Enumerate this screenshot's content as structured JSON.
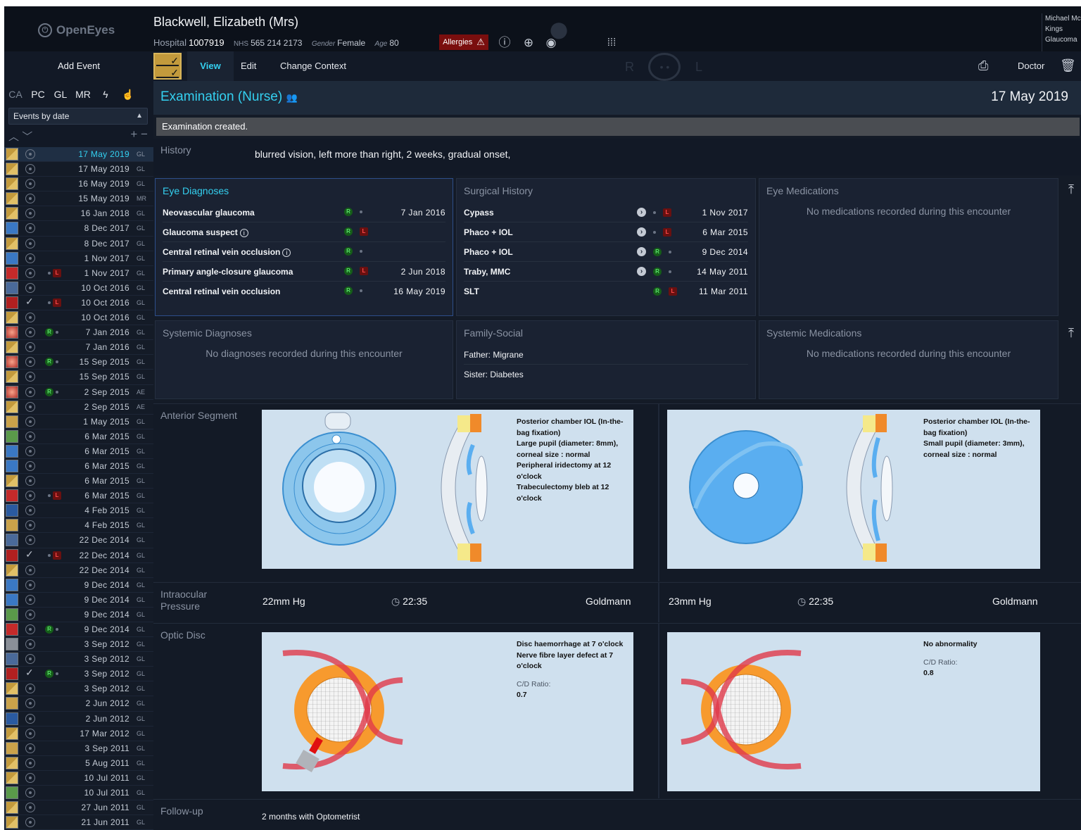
{
  "app": {
    "logo": "OpenEyes"
  },
  "patient": {
    "name": "Blackwell, Elizabeth (Mrs)",
    "hospital_label": "Hospital",
    "hospital_no": "1007919",
    "nhs_label": "NHS",
    "nhs_no": "565 214 2173",
    "gender_label": "Gender",
    "gender": "Female",
    "age_label": "Age",
    "age": "80",
    "allergies": "Allergies"
  },
  "user": {
    "line1": "Michael Mc",
    "line2": "Kings",
    "line3": "Glaucoma"
  },
  "toolbar": {
    "view": "View",
    "edit": "Edit",
    "change_context": "Change Context",
    "doctor": "Doctor",
    "ghost_r": "R",
    "ghost_l": "L"
  },
  "sidebar": {
    "add_event": "Add Event",
    "subspecialties": [
      "CA",
      "PC",
      "GL",
      "MR"
    ],
    "sort_select": "Events by date",
    "events": [
      {
        "date": "17 May 2019",
        "spec": "GL",
        "icon": "examination",
        "lat": ""
      },
      {
        "date": "17 May 2019",
        "spec": "GL",
        "icon": "examination",
        "lat": ""
      },
      {
        "date": "16 May 2019",
        "spec": "GL",
        "icon": "examination",
        "lat": ""
      },
      {
        "date": "15 May 2019",
        "spec": "MR",
        "icon": "examination",
        "lat": ""
      },
      {
        "date": "16 Jan 2018",
        "spec": "GL",
        "icon": "examination",
        "lat": ""
      },
      {
        "date": "8 Dec 2017",
        "spec": "GL",
        "icon": "referral",
        "lat": ""
      },
      {
        "date": "8 Dec 2017",
        "spec": "GL",
        "icon": "examination",
        "lat": ""
      },
      {
        "date": "1 Nov 2017",
        "spec": "GL",
        "icon": "referral",
        "lat": ""
      },
      {
        "date": "1 Nov 2017",
        "spec": "GL",
        "icon": "operation-note",
        "lat": "L"
      },
      {
        "date": "10 Oct 2016",
        "spec": "GL",
        "icon": "biometry",
        "lat": ""
      },
      {
        "date": "10 Oct 2016",
        "spec": "GL",
        "icon": "consent",
        "lat": "L",
        "check": true
      },
      {
        "date": "10 Oct 2016",
        "spec": "GL",
        "icon": "examination",
        "lat": ""
      },
      {
        "date": "7 Jan 2016",
        "spec": "GL",
        "icon": "laser",
        "lat": "R"
      },
      {
        "date": "7 Jan 2016",
        "spec": "GL",
        "icon": "examination",
        "lat": ""
      },
      {
        "date": "15 Sep 2015",
        "spec": "GL",
        "icon": "laser",
        "lat": "R"
      },
      {
        "date": "15 Sep 2015",
        "spec": "GL",
        "icon": "examination",
        "lat": ""
      },
      {
        "date": "2 Sep 2015",
        "spec": "AE",
        "icon": "laser",
        "lat": "R"
      },
      {
        "date": "2 Sep 2015",
        "spec": "AE",
        "icon": "examination",
        "lat": ""
      },
      {
        "date": "1 May 2015",
        "spec": "GL",
        "icon": "visual-fields",
        "lat": ""
      },
      {
        "date": "6 Mar 2015",
        "spec": "GL",
        "icon": "prescription",
        "lat": ""
      },
      {
        "date": "6 Mar 2015",
        "spec": "GL",
        "icon": "referral",
        "lat": ""
      },
      {
        "date": "6 Mar 2015",
        "spec": "GL",
        "icon": "referral",
        "lat": ""
      },
      {
        "date": "6 Mar 2015",
        "spec": "GL",
        "icon": "examination",
        "lat": ""
      },
      {
        "date": "6 Mar 2015",
        "spec": "GL",
        "icon": "operation-note",
        "lat": "L"
      },
      {
        "date": "4 Feb 2015",
        "spec": "GL",
        "icon": "correspondence",
        "lat": ""
      },
      {
        "date": "4 Feb 2015",
        "spec": "GL",
        "icon": "visual-fields",
        "lat": ""
      },
      {
        "date": "22 Dec 2014",
        "spec": "GL",
        "icon": "biometry",
        "lat": ""
      },
      {
        "date": "22 Dec 2014",
        "spec": "GL",
        "icon": "consent",
        "lat": "L",
        "check": true
      },
      {
        "date": "22 Dec 2014",
        "spec": "GL",
        "icon": "examination",
        "lat": ""
      },
      {
        "date": "9 Dec 2014",
        "spec": "GL",
        "icon": "referral",
        "lat": ""
      },
      {
        "date": "9 Dec 2014",
        "spec": "GL",
        "icon": "referral",
        "lat": ""
      },
      {
        "date": "9 Dec 2014",
        "spec": "GL",
        "icon": "prescription",
        "lat": ""
      },
      {
        "date": "9 Dec 2014",
        "spec": "GL",
        "icon": "operation-note",
        "lat": "R"
      },
      {
        "date": "3 Sep 2012",
        "spec": "GL",
        "icon": "orthoptics",
        "lat": ""
      },
      {
        "date": "3 Sep 2012",
        "spec": "GL",
        "icon": "biometry",
        "lat": ""
      },
      {
        "date": "3 Sep 2012",
        "spec": "GL",
        "icon": "consent",
        "lat": "R",
        "check": true
      },
      {
        "date": "3 Sep 2012",
        "spec": "GL",
        "icon": "examination",
        "lat": ""
      },
      {
        "date": "2 Jun 2012",
        "spec": "GL",
        "icon": "visual-fields",
        "lat": ""
      },
      {
        "date": "2 Jun 2012",
        "spec": "GL",
        "icon": "correspondence",
        "lat": ""
      },
      {
        "date": "17 Mar 2012",
        "spec": "GL",
        "icon": "examination",
        "lat": ""
      },
      {
        "date": "3 Sep 2011",
        "spec": "GL",
        "icon": "visual-fields",
        "lat": ""
      },
      {
        "date": "5 Aug 2011",
        "spec": "GL",
        "icon": "examination",
        "lat": ""
      },
      {
        "date": "10 Jul 2011",
        "spec": "GL",
        "icon": "examination",
        "lat": ""
      },
      {
        "date": "10 Jul 2011",
        "spec": "GL",
        "icon": "prescription",
        "lat": ""
      },
      {
        "date": "27 Jun 2011",
        "spec": "GL",
        "icon": "examination",
        "lat": ""
      },
      {
        "date": "21 Jun 2011",
        "spec": "GL",
        "icon": "examination",
        "lat": ""
      }
    ]
  },
  "event": {
    "title": "Examination (Nurse)",
    "date": "17 May 2019",
    "flash": "Examination created."
  },
  "history": {
    "label": "History",
    "text": "blurred vision, left more than right, 2 weeks, gradual onset,"
  },
  "eye_diagnoses": {
    "title": "Eye Diagnoses",
    "rows": [
      {
        "name": "Neovascular glaucoma",
        "R": true,
        "L": false,
        "date": "7 Jan 2016",
        "info": false
      },
      {
        "name": "Glaucoma suspect",
        "R": true,
        "L": true,
        "date": "",
        "info": true
      },
      {
        "name": "Central retinal vein occlusion",
        "R": true,
        "L": false,
        "date": "",
        "info": true
      },
      {
        "name": "Primary angle-closure glaucoma",
        "R": true,
        "L": true,
        "date": "2 Jun 2018",
        "info": false
      },
      {
        "name": "Central retinal vein occlusion",
        "R": true,
        "L": false,
        "date": "16 May 2019",
        "info": false
      }
    ]
  },
  "surgical_history": {
    "title": "Surgical History",
    "rows": [
      {
        "name": "Cypass",
        "R": false,
        "L": true,
        "date": "1 Nov 2017",
        "arrow": true
      },
      {
        "name": "Phaco + IOL",
        "R": false,
        "L": true,
        "date": "6 Mar 2015",
        "arrow": true
      },
      {
        "name": "Phaco + IOL",
        "R": true,
        "L": false,
        "date": "9 Dec 2014",
        "arrow": true
      },
      {
        "name": "Traby, MMC",
        "R": true,
        "L": false,
        "date": "14 May 2011",
        "arrow": true
      },
      {
        "name": "SLT",
        "R": true,
        "L": true,
        "date": "11 Mar 2011",
        "arrow": false
      }
    ]
  },
  "eye_medications": {
    "title": "Eye Medications",
    "empty": "No medications recorded during this encounter"
  },
  "systemic_diagnoses": {
    "title": "Systemic Diagnoses",
    "empty": "No diagnoses recorded during this encounter"
  },
  "family_social": {
    "title": "Family-Social",
    "rows": [
      "Father: Migrane",
      "Sister: Diabetes"
    ]
  },
  "systemic_medications": {
    "title": "Systemic Medications",
    "empty": "No medications recorded during this encounter"
  },
  "anterior_segment": {
    "label": "Anterior Segment",
    "right_lines": [
      "Posterior chamber IOL (In-the-",
      "bag fixation)",
      "Large pupil (diameter: 8mm),",
      "corneal size : normal",
      "Peripheral iridectomy at 12",
      "o'clock",
      "Trabeculectomy bleb at 12",
      "o'clock"
    ],
    "left_lines": [
      "Posterior chamber IOL (In-the-",
      "bag fixation)",
      "Small pupil (diameter: 3mm),",
      "corneal size : normal"
    ]
  },
  "iop": {
    "label": "Intraocular Pressure",
    "right": {
      "value": "22mm Hg",
      "time": "22:35",
      "method": "Goldmann"
    },
    "left": {
      "value": "23mm Hg",
      "time": "22:35",
      "method": "Goldmann"
    }
  },
  "optic_disc": {
    "label": "Optic Disc",
    "right_lines": [
      "Disc haemorrhage at 7 o'clock",
      "Nerve fibre layer defect at 7",
      "o'clock"
    ],
    "right_cd_label": "C/D Ratio:",
    "right_cd": "0.7",
    "left_lines": [
      "No abnormality"
    ],
    "left_cd_label": "C/D Ratio:",
    "left_cd": "0.8"
  },
  "follow_up": {
    "label": "Follow-up",
    "text": "2 months with Optometrist"
  },
  "colors": {
    "accent": "#34d0f0",
    "right_green": "#5be06b",
    "left_red": "#ff4a4a",
    "event_yellow": "#c39a3c"
  }
}
